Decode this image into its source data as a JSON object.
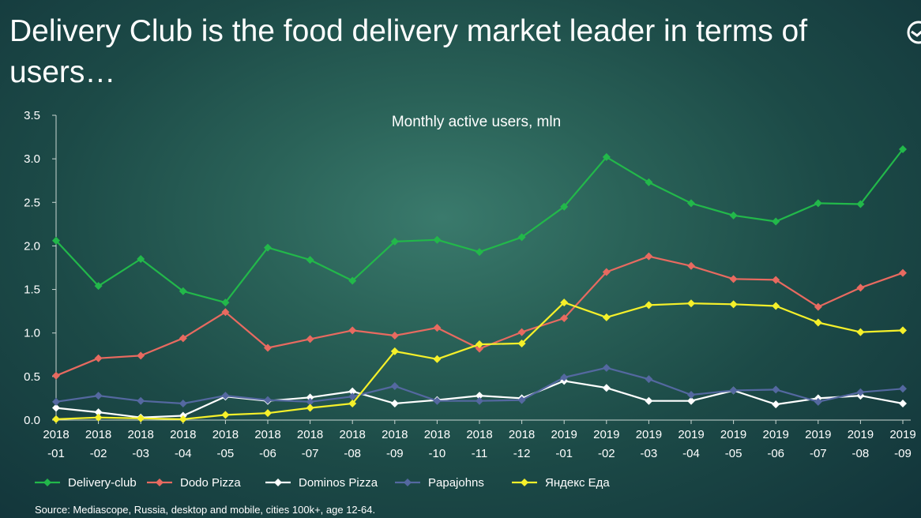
{
  "slide": {
    "title": "Delivery Club is the food delivery market leader in terms of users…",
    "source": "Source: Mediascope, Russia, desktop and mobile, cities 100k+, age 12-64."
  },
  "chart_data": {
    "type": "line",
    "title": "Monthly active users, mln",
    "xlabel": "",
    "ylabel": "",
    "ylim": [
      0,
      3.5
    ],
    "yticks": [
      "0.0",
      "0.5",
      "1.0",
      "1.5",
      "2.0",
      "2.5",
      "3.0",
      "3.5"
    ],
    "grid": false,
    "legend_position": "bottom",
    "categories": [
      [
        "2018",
        "-01"
      ],
      [
        "2018",
        "-02"
      ],
      [
        "2018",
        "-03"
      ],
      [
        "2018",
        "-04"
      ],
      [
        "2018",
        "-05"
      ],
      [
        "2018",
        "-06"
      ],
      [
        "2018",
        "-07"
      ],
      [
        "2018",
        "-08"
      ],
      [
        "2018",
        "-09"
      ],
      [
        "2018",
        "-10"
      ],
      [
        "2018",
        "-11"
      ],
      [
        "2018",
        "-12"
      ],
      [
        "2019",
        "-01"
      ],
      [
        "2019",
        "-02"
      ],
      [
        "2019",
        "-03"
      ],
      [
        "2019",
        "-04"
      ],
      [
        "2019",
        "-05"
      ],
      [
        "2019",
        "-06"
      ],
      [
        "2019",
        "-07"
      ],
      [
        "2019",
        "-08"
      ],
      [
        "2019",
        "-09"
      ]
    ],
    "series": [
      {
        "name": "Delivery-club",
        "color": "#22b84a",
        "values": [
          2.06,
          1.54,
          1.85,
          1.48,
          1.35,
          1.98,
          1.84,
          1.6,
          2.05,
          2.07,
          1.93,
          2.1,
          2.45,
          3.02,
          2.73,
          2.49,
          2.35,
          2.28,
          2.49,
          2.48,
          3.11
        ]
      },
      {
        "name": "Dodo Pizza",
        "color": "#e86a60",
        "values": [
          0.51,
          0.71,
          0.74,
          0.94,
          1.24,
          0.83,
          0.93,
          1.03,
          0.97,
          1.06,
          0.82,
          1.01,
          1.17,
          1.7,
          1.88,
          1.77,
          1.62,
          1.61,
          1.3,
          1.52,
          1.69
        ]
      },
      {
        "name": "Dominos Pizza",
        "color": "#ffffff",
        "values": [
          0.14,
          0.09,
          0.03,
          0.05,
          0.27,
          0.22,
          0.26,
          0.33,
          0.19,
          0.23,
          0.28,
          0.25,
          0.45,
          0.37,
          0.22,
          0.22,
          0.34,
          0.18,
          0.25,
          0.28,
          0.19
        ]
      },
      {
        "name": "Papajohns",
        "color": "#5468a0",
        "values": [
          0.21,
          0.28,
          0.22,
          0.19,
          0.28,
          0.23,
          0.21,
          0.27,
          0.39,
          0.22,
          0.22,
          0.23,
          0.49,
          0.6,
          0.47,
          0.29,
          0.34,
          0.35,
          0.21,
          0.32,
          0.36
        ]
      },
      {
        "name": "Яндекс Еда",
        "color": "#f5f02a",
        "values": [
          0.01,
          0.03,
          0.02,
          0.01,
          0.06,
          0.08,
          0.14,
          0.19,
          0.79,
          0.7,
          0.87,
          0.88,
          1.35,
          1.18,
          1.32,
          1.34,
          1.33,
          1.31,
          1.12,
          1.01,
          1.03
        ]
      }
    ]
  }
}
